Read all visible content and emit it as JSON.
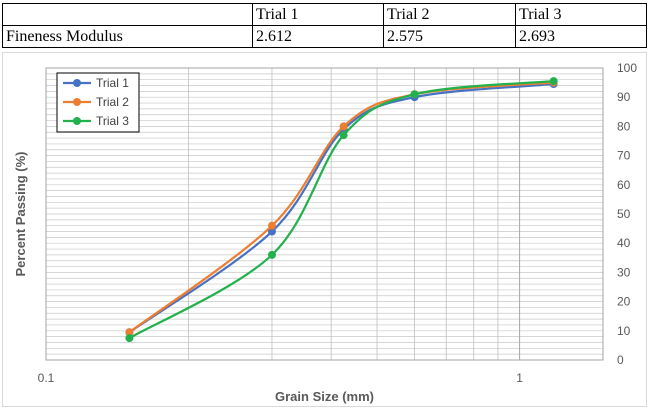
{
  "table": {
    "header": [
      "",
      "Trial 1",
      "Trial 2",
      "Trial 3"
    ],
    "row_label": "Fineness Modulus",
    "row_values": [
      "2.612",
      "2.575",
      "2.693"
    ]
  },
  "chart_data": {
    "type": "line",
    "xlabel": "Grain Size (mm)",
    "ylabel": "Percent Passing (%)",
    "x_scale": "log",
    "xlim": [
      0.1,
      1.5
    ],
    "ylim": [
      0,
      100
    ],
    "y_ticks": [
      0,
      10,
      20,
      30,
      40,
      50,
      60,
      70,
      80,
      90,
      100
    ],
    "x_tick_labels": [
      {
        "value": 0.1,
        "label": "0.1"
      },
      {
        "value": 1,
        "label": "1"
      }
    ],
    "grid": true,
    "legend_position": "top-left",
    "y_axis_side": "right",
    "series": [
      {
        "name": "Trial 1",
        "color": "#4472c4",
        "x": [
          0.15,
          0.3,
          0.425,
          0.6,
          1.18
        ],
        "y": [
          9.5,
          44,
          79,
          90,
          94.5
        ]
      },
      {
        "name": "Trial 2",
        "color": "#ed7d31",
        "x": [
          0.15,
          0.3,
          0.425,
          0.6,
          1.18
        ],
        "y": [
          9.5,
          46,
          80,
          91,
          95
        ]
      },
      {
        "name": "Trial 3",
        "color": "#22b14c",
        "x": [
          0.15,
          0.3,
          0.425,
          0.6,
          1.18
        ],
        "y": [
          7.5,
          36,
          77,
          91,
          95.5
        ]
      }
    ]
  }
}
